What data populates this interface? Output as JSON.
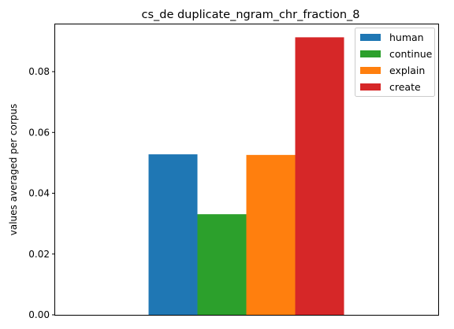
{
  "chart_data": {
    "type": "bar",
    "title": "cs_de duplicate_ngram_chr_fraction_8",
    "xlabel": "",
    "ylabel": "values averaged per corpus",
    "ylim": [
      0,
      0.0958
    ],
    "yticks": [
      0.0,
      0.02,
      0.04,
      0.06,
      0.08
    ],
    "ytick_labels": [
      "0.00",
      "0.02",
      "0.04",
      "0.06",
      "0.08"
    ],
    "categories": [
      ""
    ],
    "series": [
      {
        "name": "human",
        "values": [
          0.0528
        ],
        "color": "#1f77b4"
      },
      {
        "name": "continue",
        "values": [
          0.0331
        ],
        "color": "#2ca02c"
      },
      {
        "name": "explain",
        "values": [
          0.0526
        ],
        "color": "#ff7f0e"
      },
      {
        "name": "create",
        "values": [
          0.0913
        ],
        "color": "#d62728"
      }
    ],
    "grid": false,
    "legend_position": "top-right"
  }
}
